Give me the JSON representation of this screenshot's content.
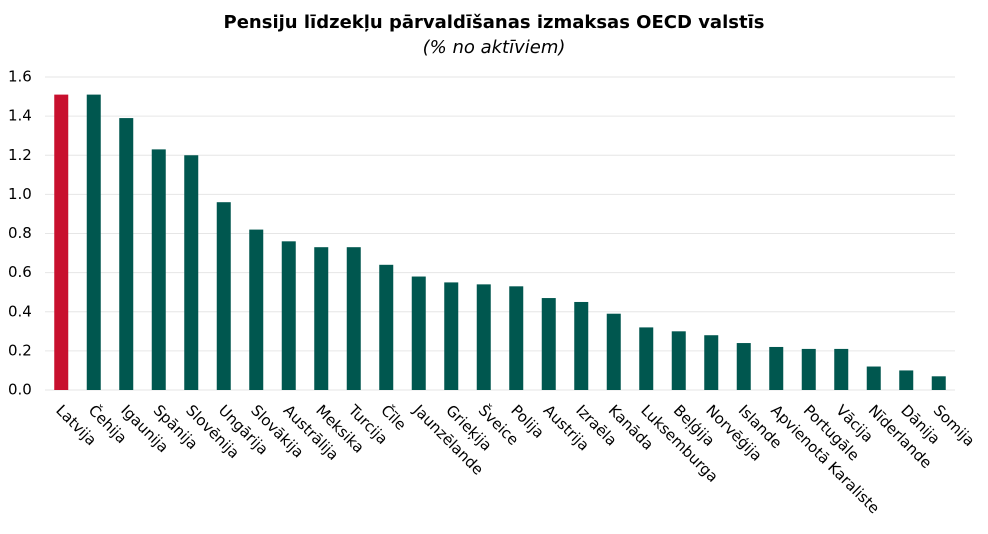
{
  "chart_data": {
    "type": "bar",
    "title": "Pensiju līdzekļu pārvaldīšanas izmaksas OECD valstīs",
    "subtitle": "(% no aktīviem)",
    "categories": [
      "Latvija",
      "Čehija",
      "Igaunija",
      "Spānija",
      "Slovēnija",
      "Ungārija",
      "Slovākija",
      "Austrālija",
      "Meksika",
      "Turcija",
      "Čīle",
      "Jaunzēlande",
      "Grieķija",
      "Šveice",
      "Polija",
      "Austrija",
      "Izraēla",
      "Kanāda",
      "Luksemburga",
      "Beļģija",
      "Norvēģija",
      "Islande",
      "Apvienotā Karaliste",
      "Portugāle",
      "Vācija",
      "Nīderlande",
      "Dānija",
      "Somija"
    ],
    "values": [
      1.51,
      1.51,
      1.39,
      1.23,
      1.2,
      0.96,
      0.82,
      0.76,
      0.73,
      0.73,
      0.64,
      0.58,
      0.55,
      0.54,
      0.53,
      0.47,
      0.45,
      0.39,
      0.32,
      0.3,
      0.28,
      0.24,
      0.22,
      0.21,
      0.21,
      0.12,
      0.1,
      0.07
    ],
    "colors": [
      "#c8102e",
      "#00574f",
      "#00574f",
      "#00574f",
      "#00574f",
      "#00574f",
      "#00574f",
      "#00574f",
      "#00574f",
      "#00574f",
      "#00574f",
      "#00574f",
      "#00574f",
      "#00574f",
      "#00574f",
      "#00574f",
      "#00574f",
      "#00574f",
      "#00574f",
      "#00574f",
      "#00574f",
      "#00574f",
      "#00574f",
      "#00574f",
      "#00574f",
      "#00574f",
      "#00574f",
      "#00574f"
    ],
    "ylim": [
      0,
      1.6
    ],
    "yticks": [
      {
        "value": 0,
        "label": "0.0"
      },
      0.2,
      0.4,
      0.6,
      0.8,
      {
        "value": 1,
        "label": "1.0"
      },
      1.2,
      1.4,
      1.6
    ],
    "grid": true
  }
}
